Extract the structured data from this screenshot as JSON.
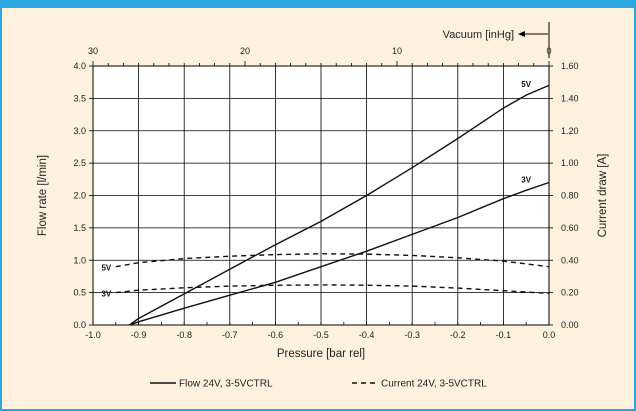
{
  "chart_data": {
    "type": "line",
    "xlabel": "Pressure [bar rel]",
    "ylabel": "Flow rate [l/min]",
    "y2label": "Current draw [A]",
    "top_axis_label": "Vacuum [inHg]",
    "xlim": [
      -1.0,
      0.0
    ],
    "ylim": [
      0,
      4.0
    ],
    "y2lim": [
      0,
      1.6
    ],
    "top_xlim": [
      30,
      0
    ],
    "x_ticks": [
      "-1.0",
      "-0.9",
      "-0.8",
      "-0.7",
      "-0.6",
      "-0.5",
      "-0.4",
      "-0.3",
      "-0.2",
      "-0.1",
      "0.0"
    ],
    "y_ticks": [
      "0.0",
      "0.5",
      "1.0",
      "1.5",
      "2.0",
      "2.5",
      "3.0",
      "3.5",
      "4.0"
    ],
    "y2_ticks": [
      "0.00",
      "0.20",
      "0.40",
      "0.60",
      "0.80",
      "1.00",
      "1.20",
      "1.40",
      "1.60"
    ],
    "top_ticks": [
      "30",
      "20",
      "10",
      "0"
    ],
    "grid": true,
    "legend_position": "bottom",
    "legend": [
      {
        "label": "Flow 24V, 3-5VCTRL",
        "style": "solid"
      },
      {
        "label": "Current 24V, 3-5VCTRL",
        "style": "dashed"
      }
    ],
    "series": [
      {
        "label": "5V",
        "axis": "left",
        "style": "solid",
        "x": [
          -0.92,
          -0.9,
          -0.8,
          -0.7,
          -0.6,
          -0.5,
          -0.4,
          -0.3,
          -0.2,
          -0.1,
          -0.05,
          0.0
        ],
        "y": [
          0.0,
          0.1,
          0.48,
          0.86,
          1.24,
          1.6,
          2.0,
          2.43,
          2.88,
          3.35,
          3.55,
          3.7
        ]
      },
      {
        "label": "3V",
        "axis": "left",
        "style": "solid",
        "x": [
          -0.92,
          -0.9,
          -0.8,
          -0.7,
          -0.6,
          -0.5,
          -0.4,
          -0.3,
          -0.2,
          -0.1,
          -0.05,
          0.0
        ],
        "y": [
          0.0,
          0.05,
          0.26,
          0.46,
          0.66,
          0.9,
          1.14,
          1.4,
          1.66,
          1.95,
          2.08,
          2.2
        ]
      },
      {
        "label": "5V",
        "axis": "right",
        "style": "dashed",
        "x": [
          -0.95,
          -0.9,
          -0.8,
          -0.7,
          -0.6,
          -0.5,
          -0.4,
          -0.3,
          -0.2,
          -0.1,
          0.0
        ],
        "y": [
          0.36,
          0.385,
          0.41,
          0.425,
          0.435,
          0.44,
          0.438,
          0.43,
          0.415,
          0.395,
          0.36
        ]
      },
      {
        "label": "3V",
        "axis": "right",
        "style": "dashed",
        "x": [
          -0.95,
          -0.9,
          -0.8,
          -0.7,
          -0.6,
          -0.5,
          -0.4,
          -0.3,
          -0.2,
          -0.1,
          0.0
        ],
        "y": [
          0.2,
          0.215,
          0.23,
          0.24,
          0.245,
          0.248,
          0.246,
          0.24,
          0.228,
          0.212,
          0.195
        ]
      }
    ]
  }
}
